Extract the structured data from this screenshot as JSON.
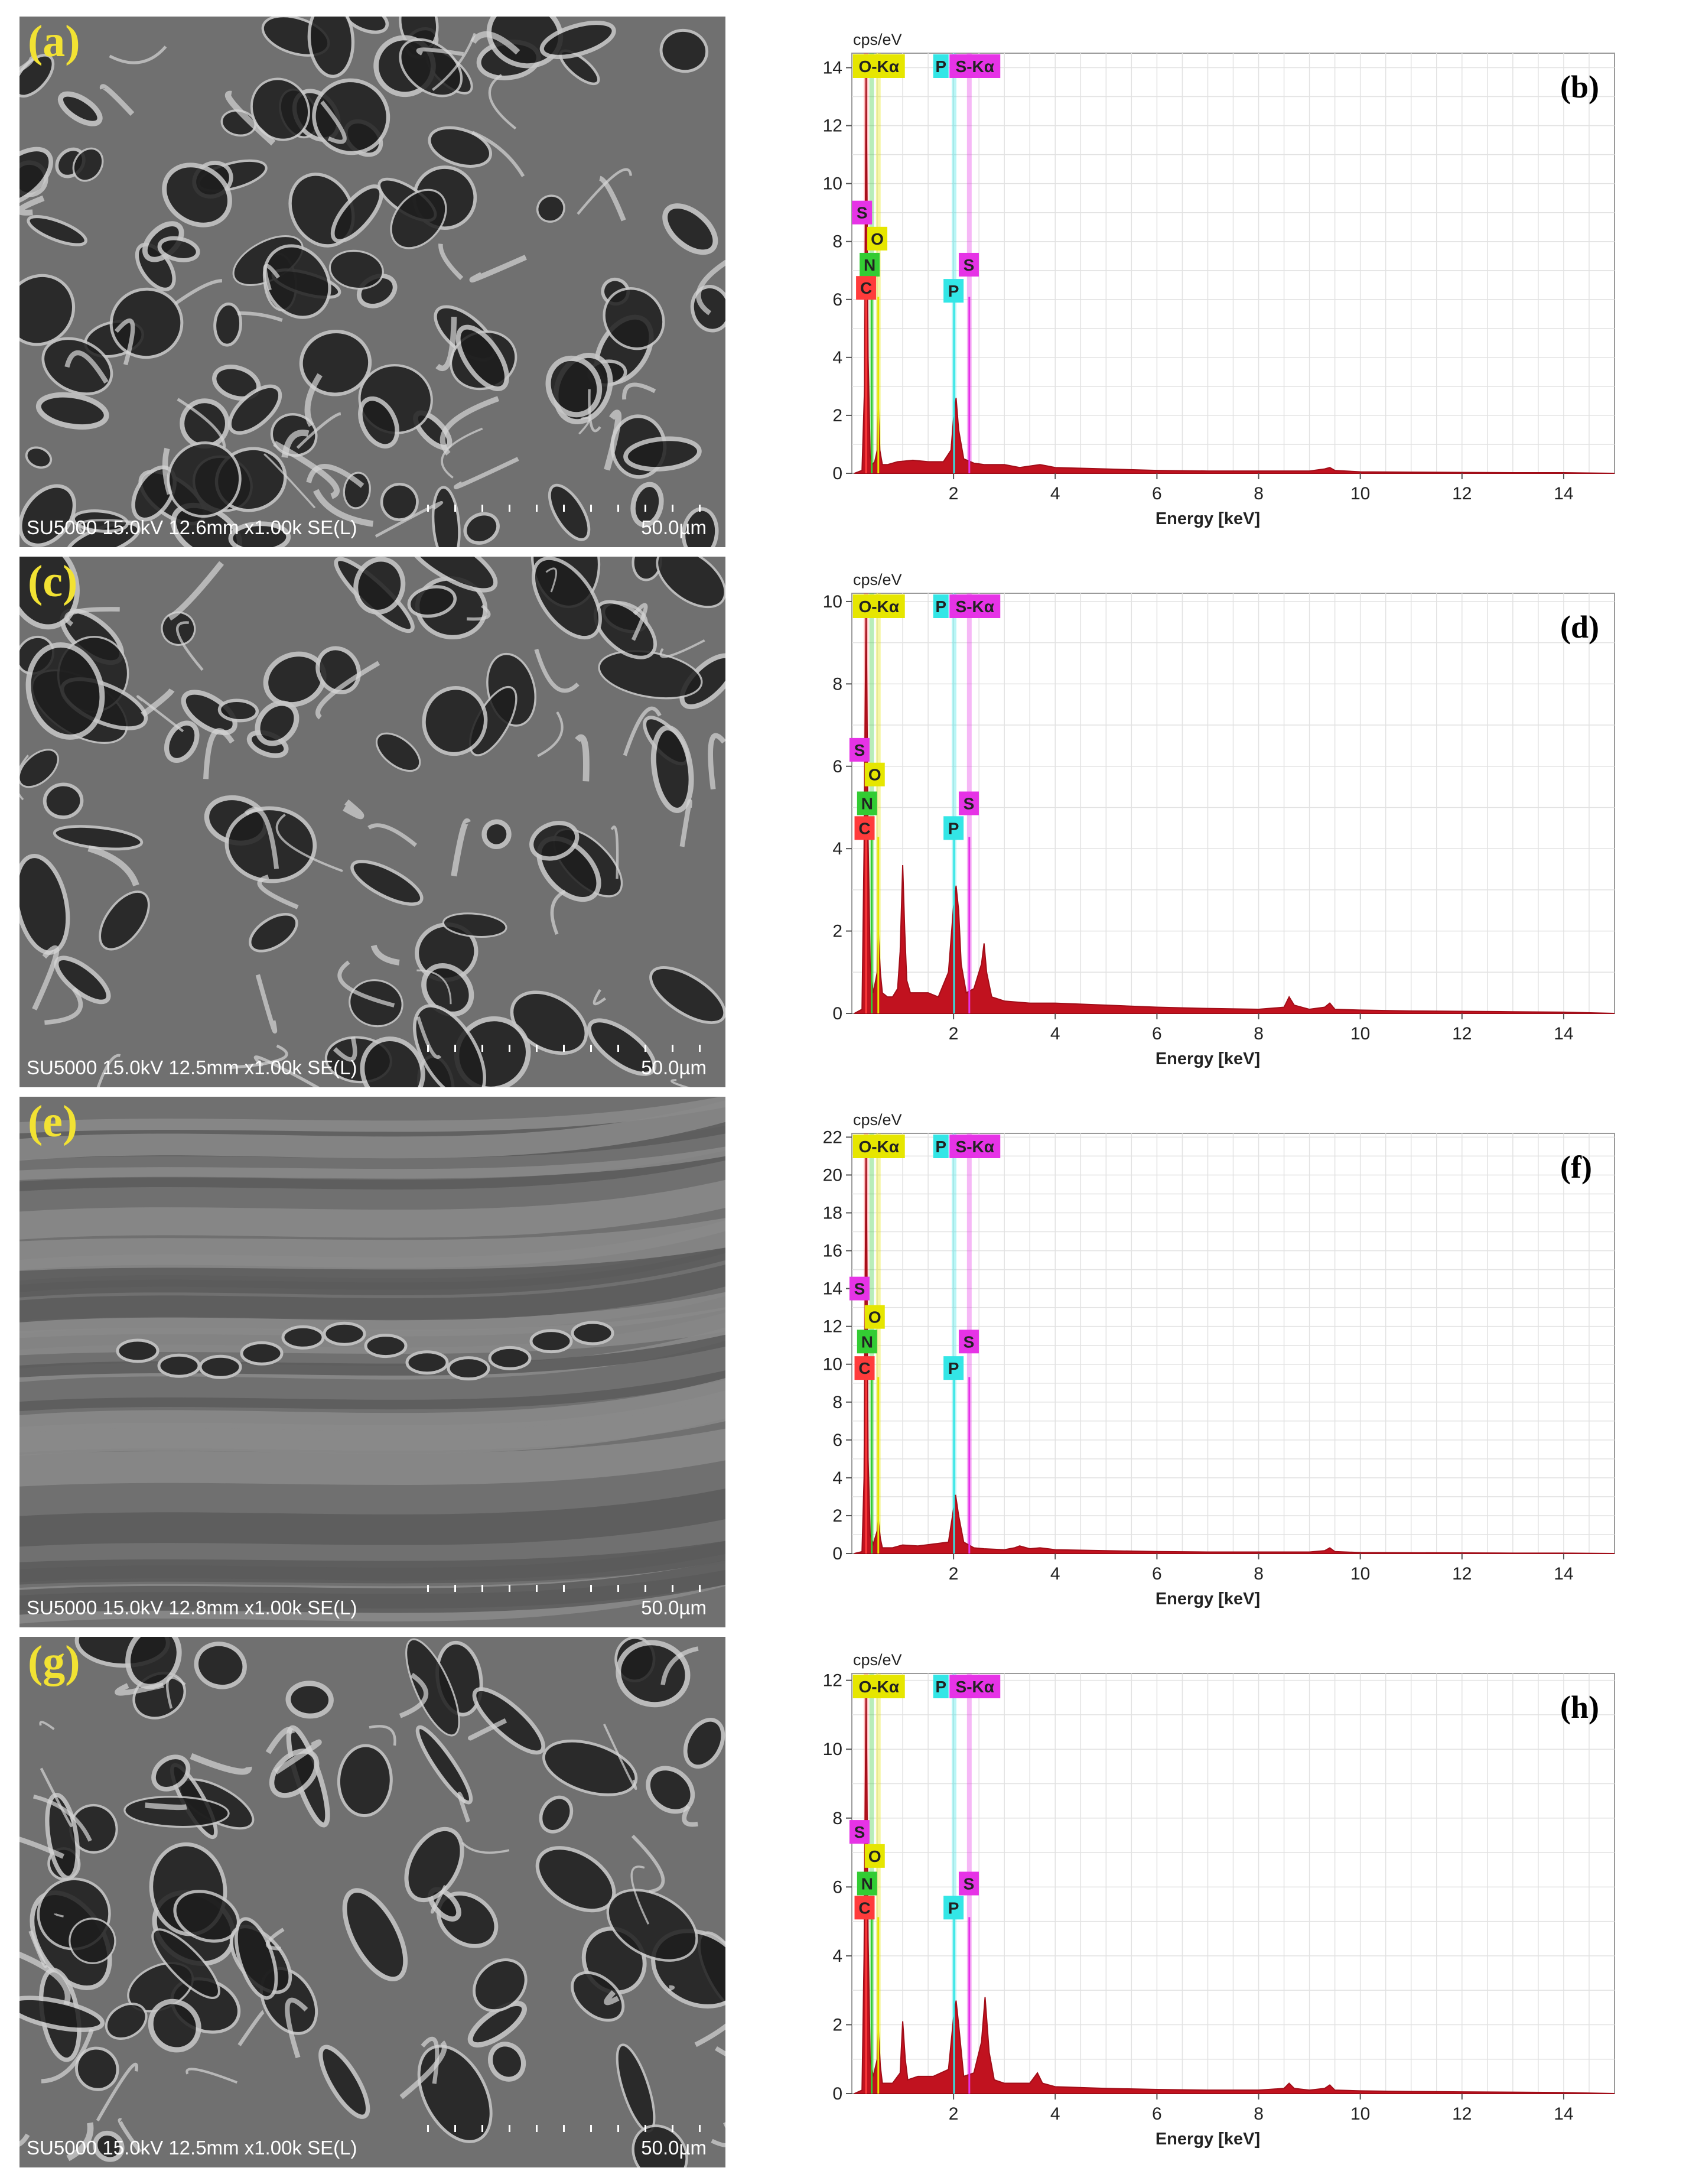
{
  "figure": {
    "panels": [
      {
        "sem_label": "(a)",
        "sem_info": "SU5000 15.0kV 12.6mm x1.00k SE(L)",
        "sem_scale": "50.0µm",
        "eds_label": "(b)"
      },
      {
        "sem_label": "(c)",
        "sem_info": "SU5000 15.0kV 12.5mm x1.00k SE(L)",
        "sem_scale": "50.0µm",
        "eds_label": "(d)"
      },
      {
        "sem_label": "(e)",
        "sem_info": "SU5000 15.0kV 12.8mm x1.00k SE(L)",
        "sem_scale": "50.0µm",
        "eds_label": "(f)"
      },
      {
        "sem_label": "(g)",
        "sem_info": "SU5000 15.0kV 12.5mm x1.00k SE(L)",
        "sem_scale": "50.0µm",
        "eds_label": "(h)"
      }
    ]
  },
  "chart_data": [
    {
      "type": "area",
      "panel": "(b)",
      "ylabel": "cps/eV",
      "xlabel": "Energy [keV]",
      "xlim": [
        0,
        15
      ],
      "ylim": [
        0,
        14.5
      ],
      "xticks": [
        2,
        4,
        6,
        8,
        10,
        12,
        14
      ],
      "yticks": [
        0,
        2,
        4,
        6,
        8,
        10,
        12,
        14
      ],
      "grid": true,
      "header_labels": [
        "O-Kα",
        "P",
        "S-Kα"
      ],
      "element_markers": [
        {
          "symbol": "S",
          "x": 0.2,
          "y": 9.0
        },
        {
          "symbol": "O",
          "x": 0.5,
          "y": 8.1
        },
        {
          "symbol": "N",
          "x": 0.35,
          "y": 7.2
        },
        {
          "symbol": "C",
          "x": 0.28,
          "y": 6.4
        },
        {
          "symbol": "S",
          "x": 2.3,
          "y": 7.2
        },
        {
          "symbol": "P",
          "x": 2.0,
          "y": 6.3
        }
      ],
      "line_markers": [
        {
          "name": "C",
          "x": 0.28,
          "color": "#ff3b3b"
        },
        {
          "name": "N",
          "x": 0.39,
          "color": "#33cc33"
        },
        {
          "name": "O",
          "x": 0.52,
          "color": "#e6e600"
        },
        {
          "name": "P",
          "x": 2.01,
          "color": "#33e6e6"
        },
        {
          "name": "S",
          "x": 2.31,
          "color": "#e633e6"
        }
      ],
      "spectrum": {
        "x": [
          0.05,
          0.2,
          0.25,
          0.28,
          0.32,
          0.36,
          0.4,
          0.45,
          0.5,
          0.52,
          0.55,
          0.6,
          0.7,
          0.9,
          1.2,
          1.5,
          1.8,
          1.95,
          2.0,
          2.05,
          2.1,
          2.2,
          2.4,
          2.6,
          3.0,
          3.3,
          3.5,
          3.7,
          4,
          5,
          6,
          7,
          8,
          9,
          9.3,
          9.4,
          9.5,
          10,
          11,
          12,
          13,
          14,
          15
        ],
        "y": [
          0,
          0.1,
          3.0,
          14.0,
          4.0,
          0.6,
          0.3,
          0.4,
          0.8,
          2.4,
          0.8,
          0.3,
          0.3,
          0.4,
          0.45,
          0.4,
          0.4,
          0.8,
          1.9,
          2.6,
          1.5,
          0.5,
          0.35,
          0.3,
          0.3,
          0.2,
          0.25,
          0.3,
          0.2,
          0.15,
          0.1,
          0.08,
          0.08,
          0.08,
          0.15,
          0.2,
          0.1,
          0.05,
          0.04,
          0.03,
          0.02,
          0.02,
          0.0
        ]
      }
    },
    {
      "type": "area",
      "panel": "(d)",
      "ylabel": "cps/eV",
      "xlabel": "Energy [keV]",
      "xlim": [
        0,
        15
      ],
      "ylim": [
        0,
        10.2
      ],
      "xticks": [
        2,
        4,
        6,
        8,
        10,
        12,
        14
      ],
      "yticks": [
        0,
        2,
        4,
        6,
        8,
        10
      ],
      "grid": true,
      "header_labels": [
        "O-Kα",
        "P",
        "S-Kα"
      ],
      "element_markers": [
        {
          "symbol": "S",
          "x": 0.15,
          "y": 6.4
        },
        {
          "symbol": "O",
          "x": 0.45,
          "y": 5.8
        },
        {
          "symbol": "N",
          "x": 0.3,
          "y": 5.1
        },
        {
          "symbol": "C",
          "x": 0.25,
          "y": 4.5
        },
        {
          "symbol": "S",
          "x": 2.3,
          "y": 5.1
        },
        {
          "symbol": "P",
          "x": 2.0,
          "y": 4.5
        }
      ],
      "line_markers": [
        {
          "name": "C",
          "x": 0.28,
          "color": "#ff3b3b"
        },
        {
          "name": "N",
          "x": 0.39,
          "color": "#33cc33"
        },
        {
          "name": "O",
          "x": 0.52,
          "color": "#e6e600"
        },
        {
          "name": "P",
          "x": 2.01,
          "color": "#33e6e6"
        },
        {
          "name": "S",
          "x": 2.31,
          "color": "#e633e6"
        }
      ],
      "spectrum": {
        "x": [
          0.05,
          0.2,
          0.24,
          0.28,
          0.32,
          0.36,
          0.42,
          0.5,
          0.52,
          0.56,
          0.6,
          0.7,
          0.8,
          0.9,
          0.95,
          1.0,
          1.04,
          1.08,
          1.15,
          1.3,
          1.5,
          1.7,
          1.9,
          2.0,
          2.05,
          2.1,
          2.15,
          2.25,
          2.4,
          2.55,
          2.6,
          2.65,
          2.75,
          3.0,
          3.5,
          4,
          5,
          6,
          7,
          8,
          8.5,
          8.6,
          8.7,
          9,
          9.3,
          9.4,
          9.5,
          10,
          11,
          12,
          13,
          14,
          15
        ],
        "y": [
          0,
          0.1,
          4.0,
          10.0,
          4.2,
          1.2,
          0.5,
          1.0,
          2.0,
          1.0,
          0.5,
          0.4,
          0.4,
          0.6,
          1.5,
          3.6,
          2.0,
          0.8,
          0.5,
          0.5,
          0.5,
          0.4,
          1.0,
          2.6,
          3.1,
          2.5,
          1.2,
          0.5,
          0.6,
          1.2,
          1.7,
          1.0,
          0.4,
          0.3,
          0.25,
          0.25,
          0.2,
          0.15,
          0.12,
          0.1,
          0.15,
          0.4,
          0.2,
          0.1,
          0.15,
          0.25,
          0.1,
          0.08,
          0.06,
          0.05,
          0.04,
          0.03,
          0.0
        ]
      }
    },
    {
      "type": "area",
      "panel": "(f)",
      "ylabel": "cps/eV",
      "xlabel": "Energy [keV]",
      "xlim": [
        0,
        15
      ],
      "ylim": [
        0,
        22.2
      ],
      "xticks": [
        2,
        4,
        6,
        8,
        10,
        12,
        14
      ],
      "yticks": [
        0,
        2,
        4,
        6,
        8,
        10,
        12,
        14,
        16,
        18,
        20,
        22
      ],
      "grid": true,
      "header_labels": [
        "O-Kα",
        "P",
        "S-Kα"
      ],
      "element_markers": [
        {
          "symbol": "S",
          "x": 0.15,
          "y": 14.0
        },
        {
          "symbol": "O",
          "x": 0.45,
          "y": 12.5
        },
        {
          "symbol": "N",
          "x": 0.3,
          "y": 11.2
        },
        {
          "symbol": "C",
          "x": 0.25,
          "y": 9.8
        },
        {
          "symbol": "S",
          "x": 2.3,
          "y": 11.2
        },
        {
          "symbol": "P",
          "x": 2.0,
          "y": 9.8
        }
      ],
      "line_markers": [
        {
          "name": "C",
          "x": 0.28,
          "color": "#ff3b3b"
        },
        {
          "name": "N",
          "x": 0.39,
          "color": "#33cc33"
        },
        {
          "name": "O",
          "x": 0.52,
          "color": "#e6e600"
        },
        {
          "name": "P",
          "x": 2.01,
          "color": "#33e6e6"
        },
        {
          "name": "S",
          "x": 2.31,
          "color": "#e633e6"
        }
      ],
      "spectrum": {
        "x": [
          0.05,
          0.2,
          0.24,
          0.28,
          0.32,
          0.36,
          0.42,
          0.5,
          0.52,
          0.56,
          0.6,
          0.8,
          1.0,
          1.3,
          1.6,
          1.9,
          1.98,
          2.04,
          2.1,
          2.2,
          2.4,
          2.6,
          3.0,
          3.2,
          3.3,
          3.5,
          3.7,
          4,
          5,
          6,
          7,
          8,
          9,
          9.3,
          9.4,
          9.5,
          10,
          11,
          12,
          13,
          14,
          15
        ],
        "y": [
          0,
          0.1,
          4.0,
          22.0,
          5.0,
          1.0,
          0.5,
          1.2,
          1.8,
          0.8,
          0.3,
          0.3,
          0.45,
          0.4,
          0.5,
          0.6,
          2.0,
          3.1,
          2.0,
          0.6,
          0.3,
          0.25,
          0.2,
          0.3,
          0.4,
          0.25,
          0.3,
          0.2,
          0.15,
          0.1,
          0.08,
          0.08,
          0.08,
          0.15,
          0.3,
          0.1,
          0.05,
          0.04,
          0.03,
          0.02,
          0.02,
          0.0
        ]
      }
    },
    {
      "type": "area",
      "panel": "(h)",
      "ylabel": "cps/eV",
      "xlabel": "Energy [keV]",
      "xlim": [
        0,
        15
      ],
      "ylim": [
        0,
        12.2
      ],
      "xticks": [
        2,
        4,
        6,
        8,
        10,
        12,
        14
      ],
      "yticks": [
        0,
        2,
        4,
        6,
        8,
        10,
        12
      ],
      "grid": true,
      "header_labels": [
        "O-Kα",
        "P",
        "S-Kα"
      ],
      "element_markers": [
        {
          "symbol": "S",
          "x": 0.15,
          "y": 7.6
        },
        {
          "symbol": "O",
          "x": 0.45,
          "y": 6.9
        },
        {
          "symbol": "N",
          "x": 0.3,
          "y": 6.1
        },
        {
          "symbol": "C",
          "x": 0.25,
          "y": 5.4
        },
        {
          "symbol": "S",
          "x": 2.3,
          "y": 6.1
        },
        {
          "symbol": "P",
          "x": 2.0,
          "y": 5.4
        }
      ],
      "line_markers": [
        {
          "name": "C",
          "x": 0.28,
          "color": "#ff3b3b"
        },
        {
          "name": "N",
          "x": 0.39,
          "color": "#33cc33"
        },
        {
          "name": "O",
          "x": 0.52,
          "color": "#e6e600"
        },
        {
          "name": "P",
          "x": 2.01,
          "color": "#33e6e6"
        },
        {
          "name": "S",
          "x": 2.31,
          "color": "#e633e6"
        }
      ],
      "spectrum": {
        "x": [
          0.05,
          0.2,
          0.24,
          0.28,
          0.32,
          0.36,
          0.42,
          0.5,
          0.52,
          0.56,
          0.6,
          0.8,
          0.95,
          1.0,
          1.05,
          1.1,
          1.3,
          1.6,
          1.9,
          2.0,
          2.05,
          2.1,
          2.2,
          2.4,
          2.55,
          2.62,
          2.7,
          2.8,
          3.0,
          3.5,
          3.65,
          3.75,
          4,
          5,
          6,
          7,
          8,
          8.5,
          8.6,
          8.7,
          9,
          9.3,
          9.4,
          9.5,
          10,
          11,
          12,
          13,
          14,
          15
        ],
        "y": [
          0,
          0.1,
          4.0,
          12.0,
          4.5,
          1.0,
          0.5,
          1.0,
          1.9,
          0.8,
          0.3,
          0.3,
          0.6,
          2.1,
          1.0,
          0.4,
          0.5,
          0.5,
          0.7,
          2.2,
          2.7,
          2.0,
          0.5,
          0.6,
          1.5,
          2.8,
          1.2,
          0.4,
          0.3,
          0.3,
          0.6,
          0.3,
          0.2,
          0.15,
          0.12,
          0.1,
          0.1,
          0.15,
          0.3,
          0.15,
          0.1,
          0.15,
          0.25,
          0.1,
          0.08,
          0.06,
          0.05,
          0.04,
          0.03,
          0.0
        ]
      }
    }
  ]
}
